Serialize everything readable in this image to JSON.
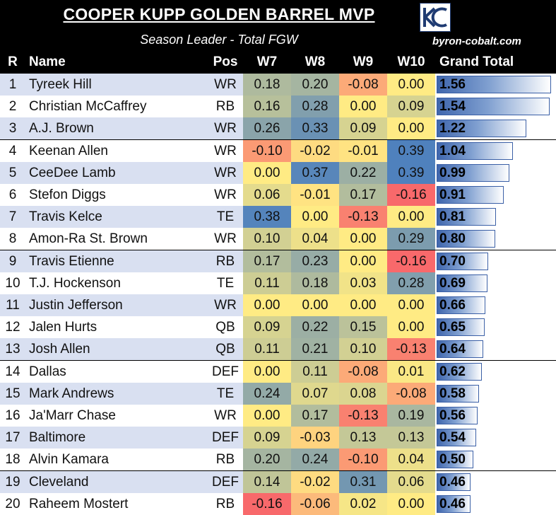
{
  "header": {
    "title": "COOPER KUPP GOLDEN BARREL MVP",
    "subtitle": "Season Leader - Total FGW",
    "website": "byron-cobalt.com",
    "logo_icon": "kc-monogram-logo"
  },
  "columns": [
    "R",
    "Name",
    "Pos",
    "W7",
    "W8",
    "W9",
    "W10",
    "Grand Total"
  ],
  "colors": {
    "row_a": "#d9e0f1",
    "row_b": "#ffffff",
    "heat_low": "#f8696b",
    "heat_mid": "#ffeb84",
    "heat_high": "#4f81bd",
    "bar": "#4f74b9"
  },
  "chart_data": {
    "type": "table",
    "title": "COOPER KUPP GOLDEN BARREL MVP",
    "subtitle": "Season Leader - Total FGW",
    "week_columns": [
      "W7",
      "W8",
      "W9",
      "W10"
    ],
    "total_range": [
      0,
      1.56
    ],
    "rows": [
      {
        "rank": "1",
        "name": "Tyreek Hill",
        "pos": "WR",
        "weeks": [
          "0.18",
          "0.20",
          "-0.08",
          "0.00"
        ],
        "total": "1.56"
      },
      {
        "rank": "2",
        "name": "Christian McCaffrey",
        "pos": "RB",
        "weeks": [
          "0.16",
          "0.28",
          "0.00",
          "0.09"
        ],
        "total": "1.54"
      },
      {
        "rank": "3",
        "name": "A.J. Brown",
        "pos": "WR",
        "weeks": [
          "0.26",
          "0.33",
          "0.09",
          "0.00"
        ],
        "total": "1.22"
      },
      {
        "rank": "4",
        "name": "Keenan Allen",
        "pos": "WR",
        "weeks": [
          "-0.10",
          "-0.02",
          "-0.01",
          "0.39"
        ],
        "total": "1.04"
      },
      {
        "rank": "5",
        "name": "CeeDee Lamb",
        "pos": "WR",
        "weeks": [
          "0.00",
          "0.37",
          "0.22",
          "0.39"
        ],
        "total": "0.99"
      },
      {
        "rank": "6",
        "name": "Stefon Diggs",
        "pos": "WR",
        "weeks": [
          "0.06",
          "-0.01",
          "0.17",
          "-0.16"
        ],
        "total": "0.91"
      },
      {
        "rank": "7",
        "name": "Travis Kelce",
        "pos": "TE",
        "weeks": [
          "0.38",
          "0.00",
          "-0.13",
          "0.00"
        ],
        "total": "0.81"
      },
      {
        "rank": "8",
        "name": "Amon-Ra St. Brown",
        "pos": "WR",
        "weeks": [
          "0.10",
          "0.04",
          "0.00",
          "0.29"
        ],
        "total": "0.80"
      },
      {
        "rank": "9",
        "name": "Travis Etienne",
        "pos": "RB",
        "weeks": [
          "0.17",
          "0.23",
          "0.00",
          "-0.16"
        ],
        "total": "0.70"
      },
      {
        "rank": "10",
        "name": "T.J. Hockenson",
        "pos": "TE",
        "weeks": [
          "0.11",
          "0.18",
          "0.03",
          "0.28"
        ],
        "total": "0.69"
      },
      {
        "rank": "11",
        "name": "Justin Jefferson",
        "pos": "WR",
        "weeks": [
          "0.00",
          "0.00",
          "0.00",
          "0.00"
        ],
        "total": "0.66"
      },
      {
        "rank": "12",
        "name": "Jalen Hurts",
        "pos": "QB",
        "weeks": [
          "0.09",
          "0.22",
          "0.15",
          "0.00"
        ],
        "total": "0.65"
      },
      {
        "rank": "13",
        "name": "Josh Allen",
        "pos": "QB",
        "weeks": [
          "0.11",
          "0.21",
          "0.10",
          "-0.13"
        ],
        "total": "0.64"
      },
      {
        "rank": "14",
        "name": "Dallas",
        "pos": "DEF",
        "weeks": [
          "0.00",
          "0.11",
          "-0.08",
          "0.01"
        ],
        "total": "0.62"
      },
      {
        "rank": "15",
        "name": "Mark Andrews",
        "pos": "TE",
        "weeks": [
          "0.24",
          "0.07",
          "0.08",
          "-0.08"
        ],
        "total": "0.58"
      },
      {
        "rank": "16",
        "name": "Ja'Marr Chase",
        "pos": "WR",
        "weeks": [
          "0.00",
          "0.17",
          "-0.13",
          "0.19"
        ],
        "total": "0.56"
      },
      {
        "rank": "17",
        "name": "Baltimore",
        "pos": "DEF",
        "weeks": [
          "0.09",
          "-0.03",
          "0.13",
          "0.13"
        ],
        "total": "0.54"
      },
      {
        "rank": "18",
        "name": "Alvin Kamara",
        "pos": "RB",
        "weeks": [
          "0.20",
          "0.24",
          "-0.10",
          "0.04"
        ],
        "total": "0.50"
      },
      {
        "rank": "19",
        "name": "Cleveland",
        "pos": "DEF",
        "weeks": [
          "0.14",
          "-0.02",
          "0.31",
          "0.06"
        ],
        "total": "0.46"
      },
      {
        "rank": "20",
        "name": "Raheem Mostert",
        "pos": "RB",
        "weeks": [
          "-0.16",
          "-0.06",
          "0.02",
          "0.00"
        ],
        "total": "0.46"
      }
    ]
  }
}
